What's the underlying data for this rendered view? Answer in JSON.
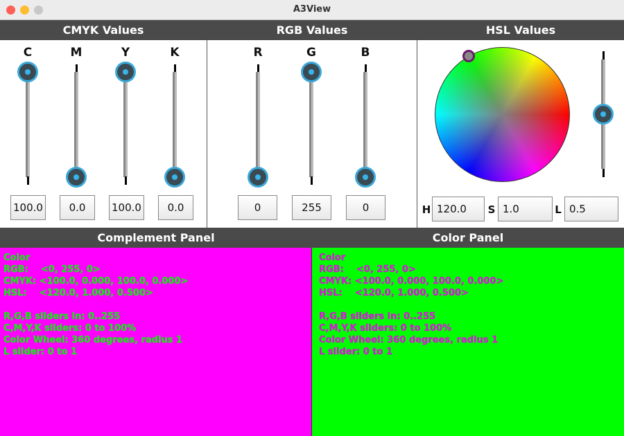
{
  "window": {
    "title": "A3View"
  },
  "cmyk": {
    "header": "CMYK Values",
    "sliders": [
      {
        "label": "C",
        "value": "100.0",
        "level": 100
      },
      {
        "label": "M",
        "value": "0.0",
        "level": 0
      },
      {
        "label": "Y",
        "value": "100.0",
        "level": 100
      },
      {
        "label": "K",
        "value": "0.0",
        "level": 0
      }
    ]
  },
  "rgb": {
    "header": "RGB Values",
    "sliders": [
      {
        "label": "R",
        "value": "0",
        "level": 0
      },
      {
        "label": "G",
        "value": "255",
        "level": 255
      },
      {
        "label": "B",
        "value": "0",
        "level": 0
      }
    ]
  },
  "hsl": {
    "header": "HSL Values",
    "h_label": "H",
    "h_value": "120.0",
    "s_label": "S",
    "s_value": "1.0",
    "l_label": "L",
    "l_value": "0.5",
    "l_level": 0.5,
    "hue": 120
  },
  "complement": {
    "header": "Complement Panel",
    "bg": "#ff00ff",
    "fg": "#22dd22",
    "lines": [
      "Color",
      "RGB:    <0, 255, 0>",
      "CMYK: <100.0, 0.000, 100.0, 0.000>",
      "HSL:    <120.0, 1.000, 0.500>",
      "",
      "R,G,B sliders in: 0..255",
      "C,M,Y,K sliders: 0 to 100%",
      "Color Wheel: 360 degrees, radius 1",
      "L slider: 0 to 1"
    ]
  },
  "color": {
    "header": "Color Panel",
    "bg": "#00ff00",
    "fg": "#cc22cc",
    "lines": [
      "Color",
      "RGB:    <0, 255, 0>",
      "CMYK: <100.0, 0.000, 100.0, 0.000>",
      "HSL:    <120.0, 1.000, 0.500>",
      "",
      "R,G,B sliders in: 0..255",
      "C,M,Y,K sliders: 0 to 100%",
      "Color Wheel: 360 degrees, radius 1",
      "L slider: 0 to 1"
    ]
  }
}
